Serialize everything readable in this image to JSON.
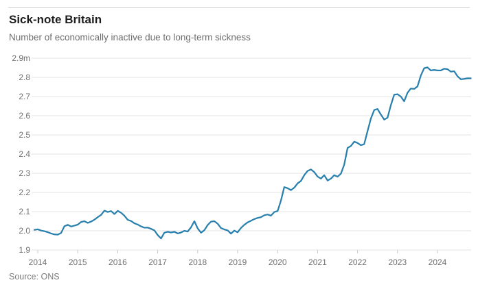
{
  "header": {
    "title": "Sick-note Britain",
    "subtitle": "Number of economically inactive due to long-term sickness"
  },
  "footer": {
    "source": "Source: ONS"
  },
  "colors": {
    "line": "#2980ad",
    "grid": "#e3e3e3",
    "tick": "#c9c9c9",
    "axis_text": "#6f6f6f",
    "title_text": "#1e1e1e",
    "subtitle_text": "#6d6d6d",
    "source_text": "#7c7c7c"
  },
  "chart_data": {
    "type": "line",
    "title": "Sick-note Britain",
    "subtitle": "Number of economically inactive due to long-term sickness",
    "unit": "millions",
    "grid": true,
    "legend": "none",
    "ylim": [
      1.9,
      2.9
    ],
    "y_ticks": [
      {
        "value": 1.9,
        "label": "1.9"
      },
      {
        "value": 2.0,
        "label": "2.0"
      },
      {
        "value": 2.1,
        "label": "2.1"
      },
      {
        "value": 2.2,
        "label": "2.2"
      },
      {
        "value": 2.3,
        "label": "2.3"
      },
      {
        "value": 2.4,
        "label": "2.4"
      },
      {
        "value": 2.5,
        "label": "2.5"
      },
      {
        "value": 2.6,
        "label": "2.6"
      },
      {
        "value": 2.7,
        "label": "2.7"
      },
      {
        "value": 2.8,
        "label": "2.8"
      },
      {
        "value": 2.9,
        "label": "2.9m"
      }
    ],
    "x_tick_labels": [
      "2014",
      "2015",
      "2016",
      "2017",
      "2018",
      "2019",
      "2020",
      "2021",
      "2022",
      "2023",
      "2024"
    ],
    "series": [
      {
        "name": "Economically inactive due to long-term sickness",
        "frequency": "monthly",
        "start": "2013-12",
        "end": "2024-11",
        "values": [
          2.005,
          2.008,
          2.001,
          1.998,
          1.993,
          1.986,
          1.981,
          1.98,
          1.989,
          2.024,
          2.031,
          2.022,
          2.027,
          2.032,
          2.046,
          2.05,
          2.041,
          2.048,
          2.058,
          2.071,
          2.083,
          2.105,
          2.098,
          2.103,
          2.087,
          2.104,
          2.094,
          2.079,
          2.057,
          2.051,
          2.039,
          2.033,
          2.023,
          2.016,
          2.017,
          2.01,
          2.002,
          1.978,
          1.96,
          1.99,
          1.995,
          1.991,
          1.995,
          1.986,
          1.991,
          2.0,
          1.996,
          2.018,
          2.05,
          2.013,
          1.99,
          2.003,
          2.03,
          2.048,
          2.05,
          2.037,
          2.014,
          2.007,
          2.002,
          1.985,
          2.001,
          1.992,
          2.015,
          2.031,
          2.044,
          2.052,
          2.061,
          2.067,
          2.071,
          2.081,
          2.085,
          2.079,
          2.098,
          2.103,
          2.158,
          2.228,
          2.222,
          2.212,
          2.225,
          2.247,
          2.26,
          2.29,
          2.312,
          2.32,
          2.306,
          2.283,
          2.272,
          2.29,
          2.262,
          2.272,
          2.29,
          2.282,
          2.298,
          2.345,
          2.432,
          2.442,
          2.465,
          2.458,
          2.446,
          2.452,
          2.52,
          2.585,
          2.63,
          2.635,
          2.606,
          2.58,
          2.59,
          2.655,
          2.71,
          2.712,
          2.7,
          2.675,
          2.72,
          2.742,
          2.74,
          2.753,
          2.81,
          2.848,
          2.852,
          2.836,
          2.839,
          2.836,
          2.836,
          2.845,
          2.843,
          2.83,
          2.832,
          2.806,
          2.79,
          2.792,
          2.795,
          2.795
        ]
      }
    ]
  }
}
